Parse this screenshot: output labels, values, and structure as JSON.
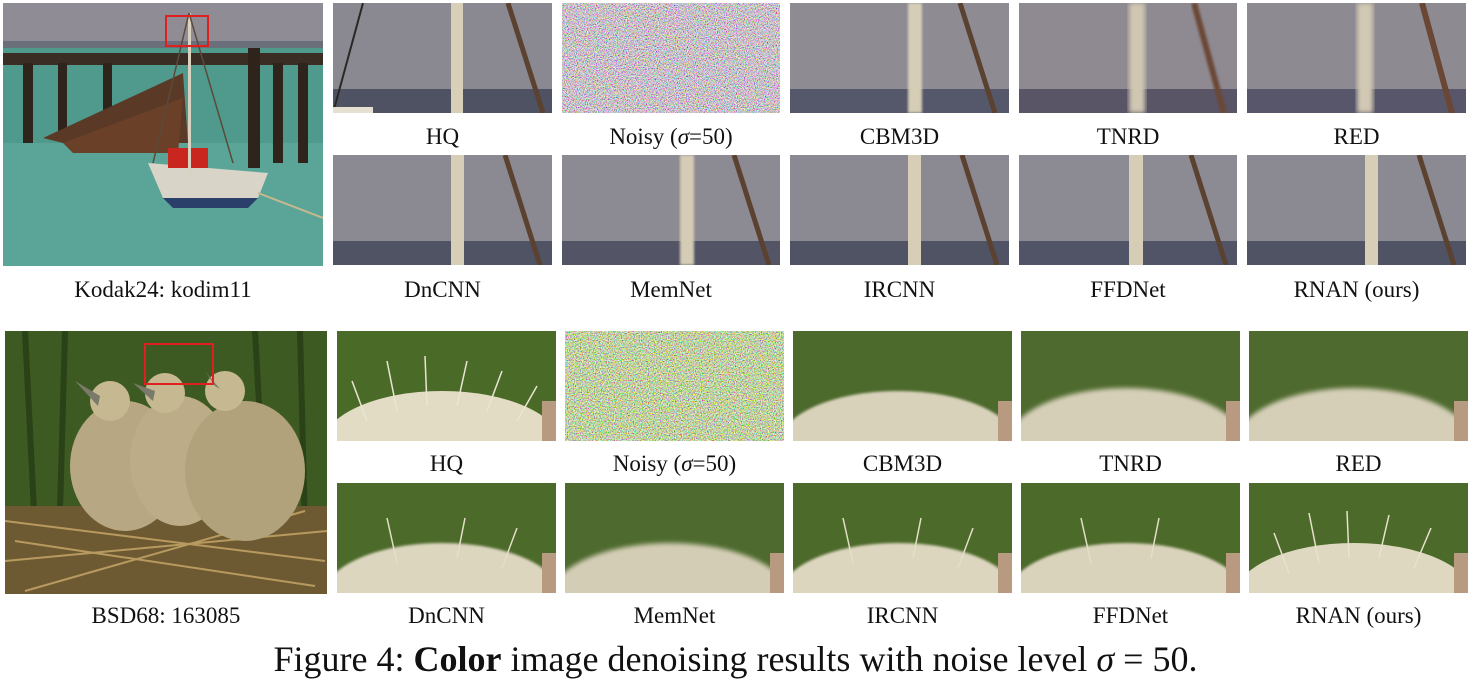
{
  "row1": {
    "source_caption": "Kodak24: kodim11",
    "top_labels": [
      "HQ",
      "Noisy (σ=50)",
      "CBM3D",
      "TNRD",
      "RED"
    ],
    "bottom_labels": [
      "DnCNN",
      "MemNet",
      "IRCNN",
      "FFDNet",
      "RNAN (ours)"
    ]
  },
  "row2": {
    "source_caption": "BSD68: 163085",
    "top_labels": [
      "HQ",
      "Noisy (σ=50)",
      "CBM3D",
      "TNRD",
      "RED"
    ],
    "bottom_labels": [
      "DnCNN",
      "MemNet",
      "IRCNN",
      "FFDNet",
      "RNAN (ours)"
    ]
  },
  "figure_caption": {
    "prefix": "Figure 4: ",
    "bold": "Color",
    "suffix": " image denoising results with noise level ",
    "sigma": "σ",
    "value": " = 50."
  },
  "noisy_label": {
    "before": "Noisy (",
    "sigma": "σ",
    "after": "=50)"
  }
}
